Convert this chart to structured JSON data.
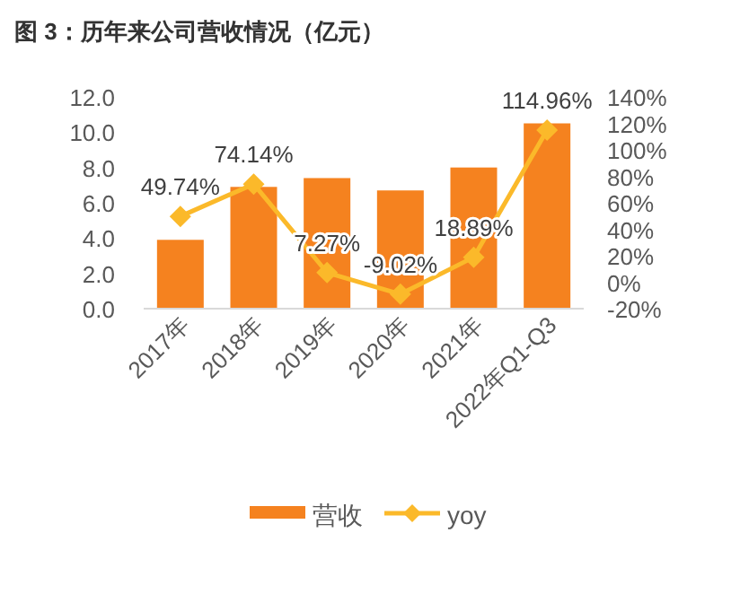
{
  "chart_data": {
    "type": "bar",
    "title": "图 3：历年来公司营收情况（亿元）",
    "categories": [
      "2017年",
      "2018年",
      "2019年",
      "2020年",
      "2021年",
      "2022年Q1-Q3"
    ],
    "series": [
      {
        "name": "营收",
        "color": "#f5821f",
        "values": [
          3.9,
          6.9,
          7.4,
          6.7,
          8.0,
          10.5
        ]
      },
      {
        "name": "yoy",
        "type": "line",
        "axis": "y2",
        "color": "#fbb92a",
        "marker": "diamond",
        "values": [
          49.74,
          74.14,
          7.27,
          -9.02,
          18.89,
          114.96
        ],
        "value_labels": [
          "49.74%",
          "74.14%",
          "7.27%",
          "-9.02%",
          "18.89%",
          "114.96%"
        ]
      }
    ],
    "ylim": [
      0,
      12
    ],
    "yticks": [
      {
        "value": 0,
        "label": "0.0"
      },
      {
        "value": 2,
        "label": "2.0"
      },
      {
        "value": 4,
        "label": "4.0"
      },
      {
        "value": 6,
        "label": "6.0"
      },
      {
        "value": 8,
        "label": "8.0"
      },
      {
        "value": 10,
        "label": "10.0"
      },
      {
        "value": 12,
        "label": "12.0"
      }
    ],
    "y2lim": [
      -20,
      140
    ],
    "y2ticks": [
      {
        "value": -20,
        "label": "-20%"
      },
      {
        "value": 0,
        "label": "0%"
      },
      {
        "value": 20,
        "label": "20%"
      },
      {
        "value": 40,
        "label": "40%"
      },
      {
        "value": 60,
        "label": "60%"
      },
      {
        "value": 80,
        "label": "80%"
      },
      {
        "value": 100,
        "label": "100%"
      },
      {
        "value": 120,
        "label": "120%"
      },
      {
        "value": 140,
        "label": "140%"
      }
    ],
    "grid": false,
    "legend": "bottom"
  }
}
